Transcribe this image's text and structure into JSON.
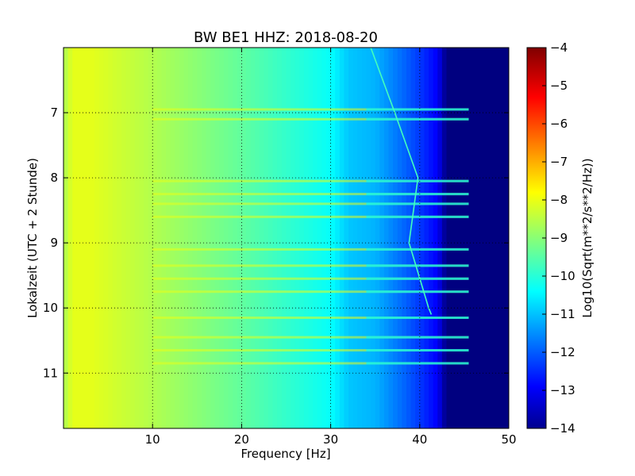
{
  "chart_data": {
    "type": "heatmap",
    "title": "BW BE1 HHZ: 2018-08-20",
    "xlabel": "Frequency [Hz]",
    "ylabel": "Lokalzeit (UTC + 2 Stunde)",
    "xlim": [
      0,
      50
    ],
    "ylim": [
      11.85,
      6.0
    ],
    "x_ticks": [
      10,
      20,
      30,
      40,
      50
    ],
    "y_ticks": [
      7,
      8,
      9,
      10,
      11
    ],
    "grid": true,
    "colormap": "jet",
    "colorbar": {
      "label": "Log10(Sqrt(m**2/s**2/Hz))",
      "range": [
        -14,
        -4
      ],
      "ticks": [
        -4,
        -5,
        -6,
        -7,
        -8,
        -9,
        -10,
        -11,
        -12,
        -13,
        -14
      ]
    },
    "value_profile": {
      "frequency_hz": [
        0,
        1,
        3,
        10,
        20,
        30,
        32,
        35,
        38,
        40,
        42,
        43,
        45,
        50
      ],
      "log10_amplitude": [
        -8.6,
        -8.0,
        -8.0,
        -8.5,
        -9.3,
        -10.2,
        -10.8,
        -11.0,
        -11.7,
        -12.2,
        -12.8,
        -14.0,
        -14.0,
        -14.0
      ]
    },
    "narrowband_line": {
      "description": "drifting spectral line",
      "time_hours": [
        6.0,
        7.0,
        8.0,
        9.0,
        10.0,
        10.1
      ],
      "frequency_hz": [
        34.5,
        37.2,
        39.8,
        38.8,
        41.0,
        41.3
      ]
    },
    "horizontal_bands_hours": [
      6.95,
      7.1,
      8.05,
      8.25,
      8.4,
      8.6,
      9.1,
      9.35,
      9.55,
      9.75,
      10.15,
      10.45,
      10.65,
      10.85
    ]
  }
}
